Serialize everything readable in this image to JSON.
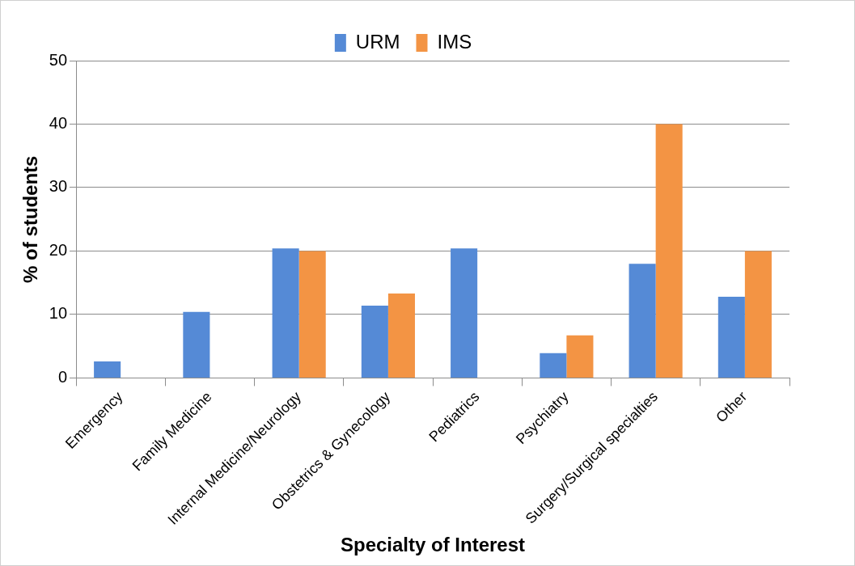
{
  "chart_data": {
    "type": "bar",
    "xlabel": "Specialty of Interest",
    "ylabel": "% of students",
    "categories": [
      "Emergency",
      "Family Medicine",
      "Internal Medicine/Neurology",
      "Obstetrics & Gynecology",
      "Pediatrics",
      "Psychiatry",
      "Surgery/Surgical specialties",
      "Other"
    ],
    "series": [
      {
        "name": "URM",
        "color": "#558ad6",
        "values": [
          2.6,
          10.4,
          20.4,
          11.4,
          20.4,
          3.9,
          18.0,
          12.8
        ]
      },
      {
        "name": "IMS",
        "color": "#f39444",
        "values": [
          0,
          0,
          20,
          13.3,
          0,
          6.7,
          40,
          20
        ]
      }
    ],
    "ylim": [
      0,
      50
    ],
    "yticks": [
      0,
      10,
      20,
      30,
      40,
      50
    ],
    "grid": "y",
    "legend": "top"
  }
}
